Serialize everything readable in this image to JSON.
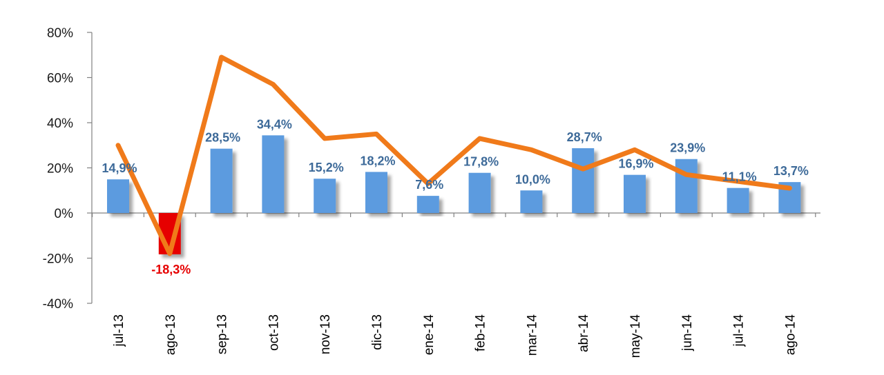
{
  "chart_data": {
    "type": "bar",
    "title": "",
    "xlabel": "",
    "ylabel": "",
    "ylim": [
      -40,
      80
    ],
    "yticks": [
      -40,
      -20,
      0,
      20,
      40,
      60,
      80
    ],
    "ytick_labels": [
      "-40%",
      "-20%",
      "0%",
      "20%",
      "40%",
      "60%",
      "80%"
    ],
    "categories": [
      "jul-13",
      "ago-13",
      "sep-13",
      "oct-13",
      "nov-13",
      "dic-13",
      "ene-14",
      "feb-14",
      "mar-14",
      "abr-14",
      "may-14",
      "jun-14",
      "jul-14",
      "ago-14"
    ],
    "series": [
      {
        "name": "bars",
        "type": "bar",
        "values": [
          14.9,
          -18.3,
          28.5,
          34.4,
          15.2,
          18.2,
          7.6,
          17.8,
          10.0,
          28.7,
          16.9,
          23.9,
          11.1,
          13.7
        ],
        "labels": [
          "14,9%",
          "-18,3%",
          "28,5%",
          "34,4%",
          "15,2%",
          "18,2%",
          "7,6%",
          "17,8%",
          "10,0%",
          "28,7%",
          "16,9%",
          "23,9%",
          "11,1%",
          "13,7%"
        ]
      },
      {
        "name": "line",
        "type": "line",
        "values": [
          30,
          -18,
          69,
          57,
          33,
          35,
          13,
          33,
          28,
          19.5,
          28,
          17,
          14,
          11
        ]
      }
    ],
    "colors": {
      "bar_positive": "#5b9bdf",
      "bar_negative": "#e60000",
      "line": "#f07a1a",
      "label_positive": "#3d6a99",
      "label_negative": "#e60000",
      "axis": "#808080"
    }
  }
}
